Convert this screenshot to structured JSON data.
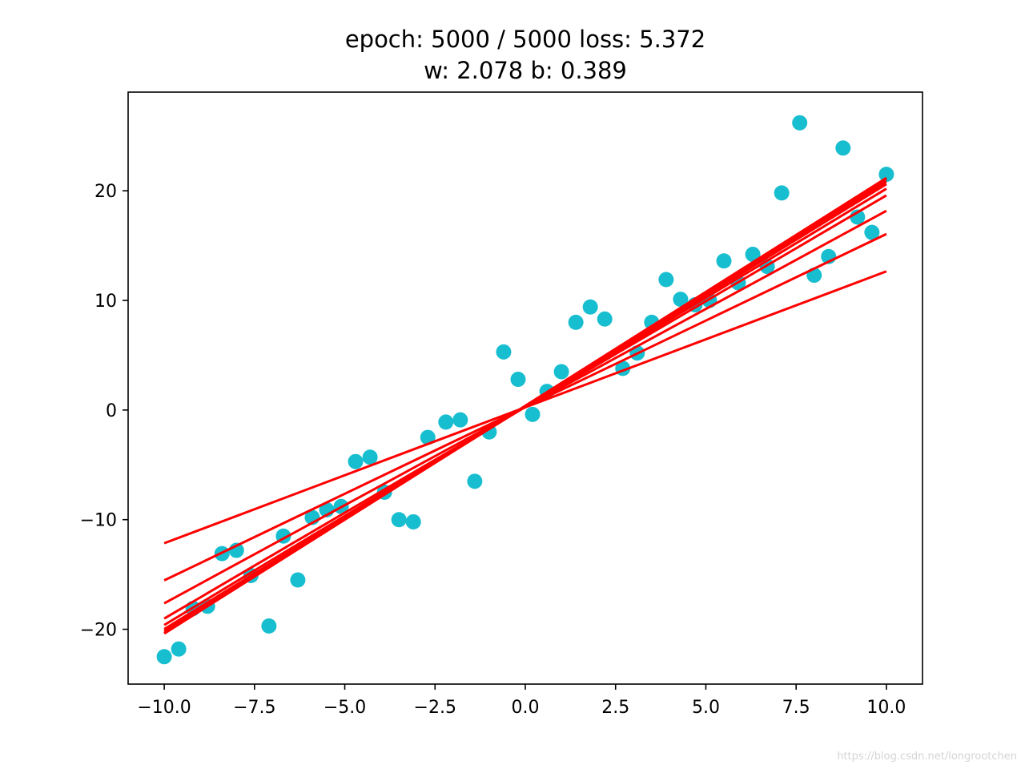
{
  "chart_data": {
    "type": "scatter",
    "title": "epoch: 5000 / 5000 loss: 5.372",
    "subtitle": "w: 2.078 b: 0.389",
    "xlabel": "",
    "ylabel": "",
    "xlim": [
      -11,
      11
    ],
    "ylim": [
      -25,
      29
    ],
    "xticks": [
      -10.0,
      -7.5,
      -5.0,
      -2.5,
      0.0,
      2.5,
      5.0,
      7.5,
      10.0
    ],
    "xtick_labels": [
      "−10.0",
      "−7.5",
      "−5.0",
      "−2.5",
      "0.0",
      "2.5",
      "5.0",
      "7.5",
      "10.0"
    ],
    "yticks": [
      -20,
      -10,
      0,
      10,
      20
    ],
    "ytick_labels": [
      "−20",
      "−10",
      "0",
      "10",
      "20"
    ],
    "grid": false,
    "point_color": "#17becf",
    "line_color": "#ff0000",
    "series": [
      {
        "kind": "scatter",
        "x": [
          -10.0,
          -9.6,
          -9.2,
          -8.8,
          -8.4,
          -8.0,
          -7.6,
          -7.1,
          -6.7,
          -6.3,
          -5.9,
          -5.5,
          -5.1,
          -4.7,
          -4.3,
          -3.9,
          -3.5,
          -3.1,
          -2.7,
          -2.2,
          -1.8,
          -1.4,
          -1.0,
          -0.6,
          -0.2,
          0.2,
          0.6,
          1.0,
          1.4,
          1.8,
          2.2,
          2.7,
          3.1,
          3.5,
          3.9,
          4.3,
          4.7,
          5.1,
          5.5,
          5.9,
          6.3,
          6.7,
          7.1,
          7.6,
          8.0,
          8.4,
          8.8,
          9.2,
          9.6,
          10.0
        ],
        "y": [
          -22.5,
          -21.8,
          -18.1,
          -17.9,
          -13.1,
          -12.8,
          -15.1,
          -19.7,
          -11.5,
          -15.5,
          -9.8,
          -9.1,
          -8.8,
          -4.7,
          -4.3,
          -7.5,
          -10.0,
          -10.2,
          -2.5,
          -1.1,
          -0.9,
          -6.5,
          -2.0,
          5.3,
          2.8,
          -0.4,
          1.7,
          3.5,
          8.0,
          9.4,
          8.3,
          3.8,
          5.2,
          8.0,
          11.9,
          10.1,
          9.6,
          10.0,
          13.6,
          11.6,
          14.2,
          13.1,
          19.8,
          26.2,
          12.3,
          14.0,
          23.9,
          17.6,
          16.2,
          21.5
        ]
      },
      {
        "kind": "lines",
        "lines": [
          {
            "w": 1.24,
            "b": 0.25
          },
          {
            "w": 1.58,
            "b": 0.26
          },
          {
            "w": 1.79,
            "b": 0.27
          },
          {
            "w": 1.93,
            "b": 0.28
          },
          {
            "w": 1.99,
            "b": 0.29
          },
          {
            "w": 2.03,
            "b": 0.31
          },
          {
            "w": 2.05,
            "b": 0.33
          },
          {
            "w": 2.07,
            "b": 0.36
          },
          {
            "w": 2.078,
            "b": 0.389
          }
        ],
        "x_range": [
          -10.0,
          10.0
        ]
      }
    ]
  },
  "watermark": "https://blog.csdn.net/longrootchen"
}
